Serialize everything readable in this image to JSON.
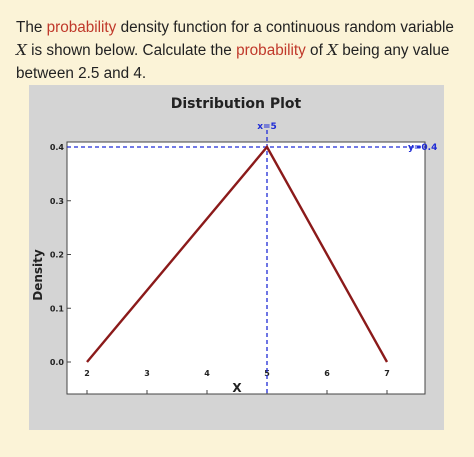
{
  "question": {
    "part1": "The ",
    "highlight1": "probability",
    "part2": " density function for a continuous random variable ",
    "var1": "X",
    "part3": " is shown below. Calculate the ",
    "highlight2": "probability",
    "part4": " of ",
    "var2": "X",
    "part5": " being any value between 2.5 and 4."
  },
  "colors": {
    "highlight": "#c0392b",
    "line": "#8b1a1a",
    "ref_line": "#1f2bd6",
    "plot_bg": "#d4d4d4"
  },
  "chart_data": {
    "type": "line",
    "title": "Distribution Plot",
    "xlabel": "X",
    "ylabel": "Density",
    "xlim": [
      2,
      7
    ],
    "ylim": [
      0,
      0.4
    ],
    "x_ticks": [
      "2",
      "3",
      "4",
      "5",
      "6",
      "7"
    ],
    "y_ticks": [
      "0.0",
      "0.1",
      "0.2",
      "0.3",
      "0.4"
    ],
    "x": [
      2,
      5,
      7
    ],
    "y": [
      0,
      0.4,
      0
    ],
    "reference_lines": {
      "x_label": "x=5",
      "x_value": 5,
      "y_label": "y=0.4",
      "y_value": 0.4
    },
    "grid": false
  }
}
